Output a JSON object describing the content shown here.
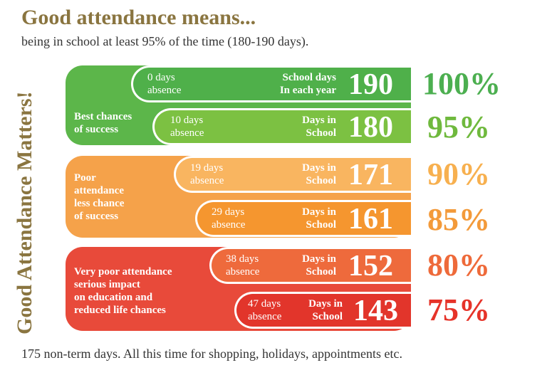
{
  "title": "Good attendance means...",
  "subtitle": "being in school at least 95% of the time (180-190 days).",
  "side_heading": "Good Attendance Matters!",
  "footer": "175 non-term days. All this time for shopping, holidays, appointments etc.",
  "groups": [
    {
      "label_lines": [
        "Best chances",
        "of success"
      ],
      "color": "#5cb64a"
    },
    {
      "label_lines": [
        "Poor",
        "attendance",
        "less chance",
        "of success"
      ],
      "color": "#f5a24a"
    },
    {
      "label_lines": [
        "Very poor attendance",
        "serious impact",
        "on education and",
        "reduced life chances"
      ],
      "color": "#e84a3a"
    }
  ],
  "rows": [
    {
      "absence_days": "0 days",
      "absence_word": "absence",
      "label_line1": "School days",
      "label_line2": "In each year",
      "days": "190",
      "percent": "100%",
      "fill": "#4fb04a",
      "percent_color": "#4caf50"
    },
    {
      "absence_days": "10 days",
      "absence_word": "absence",
      "label_line1": "Days in",
      "label_line2": "School",
      "days": "180",
      "percent": "95%",
      "fill": "#7cc142",
      "percent_color": "#6fb93d"
    },
    {
      "absence_days": "19 days",
      "absence_word": "absence",
      "label_line1": "Days in",
      "label_line2": "School",
      "days": "171",
      "percent": "90%",
      "fill": "#f9b560",
      "percent_color": "#f7b04f"
    },
    {
      "absence_days": "29 days",
      "absence_word": "absence",
      "label_line1": "Days in",
      "label_line2": "School",
      "days": "161",
      "percent": "85%",
      "fill": "#f5962f",
      "percent_color": "#f39a3a"
    },
    {
      "absence_days": "38 days",
      "absence_word": "absence",
      "label_line1": "Days in",
      "label_line2": "School",
      "days": "152",
      "percent": "80%",
      "fill": "#ee6a3c",
      "percent_color": "#ee6a3a"
    },
    {
      "absence_days": "47 days",
      "absence_word": "absence",
      "label_line1": "Days in",
      "label_line2": "School",
      "days": "143",
      "percent": "75%",
      "fill": "#e2352b",
      "percent_color": "#e63329"
    }
  ]
}
